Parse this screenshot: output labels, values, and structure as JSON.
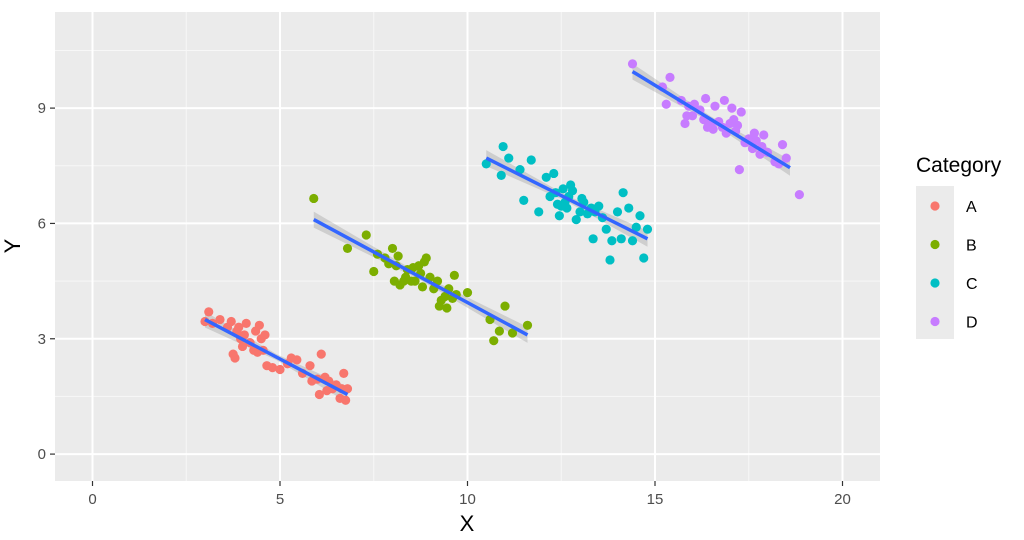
{
  "chart_data": {
    "type": "scatter",
    "xlabel": "X",
    "ylabel": "Y",
    "xlim": [
      -1,
      21
    ],
    "ylim": [
      -0.7,
      11.5
    ],
    "x_ticks": [
      0,
      5,
      10,
      15,
      20
    ],
    "x_tick_labels": [
      "0",
      "5",
      "10",
      "15",
      "20"
    ],
    "y_ticks": [
      0,
      3,
      6,
      9
    ],
    "y_tick_labels": [
      "0",
      "3",
      "6",
      "9"
    ],
    "grid": true,
    "legend": {
      "title": "Category",
      "placement": "right"
    },
    "trend_color": "#3366ff",
    "series": [
      {
        "name": "A",
        "color": "#f8766d",
        "fit": {
          "x0": 3.0,
          "y0": 3.5,
          "x1": 6.8,
          "y1": 1.55
        },
        "points": [
          [
            3.0,
            3.45
          ],
          [
            3.1,
            3.7
          ],
          [
            3.2,
            3.4
          ],
          [
            3.4,
            3.5
          ],
          [
            3.6,
            3.3
          ],
          [
            3.7,
            3.45
          ],
          [
            3.75,
            2.6
          ],
          [
            3.8,
            2.5
          ],
          [
            3.85,
            3.2
          ],
          [
            3.9,
            3.3
          ],
          [
            3.95,
            3.0
          ],
          [
            4.0,
            2.8
          ],
          [
            4.05,
            3.1
          ],
          [
            4.1,
            3.4
          ],
          [
            4.2,
            2.9
          ],
          [
            4.3,
            2.7
          ],
          [
            4.35,
            3.2
          ],
          [
            4.4,
            2.65
          ],
          [
            4.45,
            3.35
          ],
          [
            4.5,
            3.0
          ],
          [
            4.55,
            2.7
          ],
          [
            4.6,
            3.1
          ],
          [
            4.65,
            2.3
          ],
          [
            4.8,
            2.25
          ],
          [
            5.0,
            2.2
          ],
          [
            5.2,
            2.35
          ],
          [
            5.3,
            2.5
          ],
          [
            5.45,
            2.45
          ],
          [
            5.6,
            2.1
          ],
          [
            5.8,
            2.3
          ],
          [
            5.85,
            1.9
          ],
          [
            6.0,
            1.95
          ],
          [
            6.05,
            1.55
          ],
          [
            6.1,
            2.6
          ],
          [
            6.2,
            2.0
          ],
          [
            6.25,
            1.65
          ],
          [
            6.3,
            1.9
          ],
          [
            6.4,
            1.7
          ],
          [
            6.5,
            1.8
          ],
          [
            6.6,
            1.45
          ],
          [
            6.65,
            1.7
          ],
          [
            6.7,
            2.1
          ],
          [
            6.8,
            1.7
          ],
          [
            6.75,
            1.4
          ]
        ]
      },
      {
        "name": "B",
        "color": "#7cae00",
        "fit": {
          "x0": 5.9,
          "y0": 6.1,
          "x1": 11.6,
          "y1": 3.1
        },
        "points": [
          [
            5.9,
            6.65
          ],
          [
            6.8,
            5.35
          ],
          [
            7.3,
            5.7
          ],
          [
            7.5,
            4.75
          ],
          [
            7.6,
            5.2
          ],
          [
            7.8,
            5.1
          ],
          [
            7.9,
            4.95
          ],
          [
            8.0,
            5.35
          ],
          [
            8.05,
            4.5
          ],
          [
            8.1,
            4.9
          ],
          [
            8.15,
            5.15
          ],
          [
            8.2,
            4.4
          ],
          [
            8.3,
            4.5
          ],
          [
            8.35,
            4.6
          ],
          [
            8.4,
            4.8
          ],
          [
            8.5,
            4.5
          ],
          [
            8.55,
            4.85
          ],
          [
            8.6,
            4.5
          ],
          [
            8.7,
            4.9
          ],
          [
            8.75,
            4.7
          ],
          [
            8.8,
            4.35
          ],
          [
            8.85,
            5.0
          ],
          [
            8.9,
            5.1
          ],
          [
            9.0,
            4.6
          ],
          [
            9.1,
            4.3
          ],
          [
            9.2,
            4.5
          ],
          [
            9.25,
            3.85
          ],
          [
            9.3,
            4.0
          ],
          [
            9.4,
            4.1
          ],
          [
            9.45,
            3.8
          ],
          [
            9.5,
            4.3
          ],
          [
            9.6,
            4.05
          ],
          [
            9.65,
            4.65
          ],
          [
            9.7,
            4.15
          ],
          [
            10.0,
            4.2
          ],
          [
            10.7,
            2.95
          ],
          [
            10.85,
            3.2
          ],
          [
            11.0,
            3.85
          ],
          [
            11.2,
            3.15
          ],
          [
            11.6,
            3.35
          ],
          [
            10.6,
            3.5
          ]
        ]
      },
      {
        "name": "C",
        "color": "#00bfc4",
        "fit": {
          "x0": 10.5,
          "y0": 7.7,
          "x1": 14.8,
          "y1": 5.6
        },
        "points": [
          [
            10.5,
            7.55
          ],
          [
            10.9,
            7.25
          ],
          [
            10.95,
            8.0
          ],
          [
            11.1,
            7.7
          ],
          [
            11.4,
            7.4
          ],
          [
            11.5,
            6.6
          ],
          [
            11.7,
            7.65
          ],
          [
            11.9,
            6.3
          ],
          [
            12.1,
            7.2
          ],
          [
            12.2,
            6.7
          ],
          [
            12.3,
            7.3
          ],
          [
            12.35,
            6.8
          ],
          [
            12.4,
            6.5
          ],
          [
            12.45,
            6.2
          ],
          [
            12.5,
            6.45
          ],
          [
            12.55,
            6.9
          ],
          [
            12.6,
            6.55
          ],
          [
            12.65,
            6.4
          ],
          [
            12.7,
            6.7
          ],
          [
            12.75,
            7.0
          ],
          [
            12.8,
            6.85
          ],
          [
            12.9,
            6.1
          ],
          [
            13.0,
            6.3
          ],
          [
            13.05,
            6.65
          ],
          [
            13.1,
            6.55
          ],
          [
            13.2,
            6.25
          ],
          [
            13.3,
            6.4
          ],
          [
            13.35,
            5.6
          ],
          [
            13.4,
            6.3
          ],
          [
            13.5,
            6.45
          ],
          [
            13.6,
            6.15
          ],
          [
            13.7,
            5.85
          ],
          [
            13.8,
            5.05
          ],
          [
            13.85,
            5.55
          ],
          [
            14.0,
            6.3
          ],
          [
            14.1,
            5.6
          ],
          [
            14.15,
            6.8
          ],
          [
            14.3,
            6.4
          ],
          [
            14.4,
            5.55
          ],
          [
            14.5,
            5.9
          ],
          [
            14.6,
            6.2
          ],
          [
            14.7,
            5.1
          ],
          [
            14.8,
            5.85
          ]
        ]
      },
      {
        "name": "D",
        "color": "#c77cff",
        "fit": {
          "x0": 14.4,
          "y0": 9.95,
          "x1": 18.6,
          "y1": 7.45
        },
        "points": [
          [
            14.4,
            10.15
          ],
          [
            15.2,
            9.55
          ],
          [
            15.3,
            9.1
          ],
          [
            15.4,
            9.8
          ],
          [
            15.7,
            9.2
          ],
          [
            15.8,
            8.6
          ],
          [
            15.85,
            8.8
          ],
          [
            15.9,
            9.05
          ],
          [
            16.0,
            8.8
          ],
          [
            16.05,
            9.1
          ],
          [
            16.2,
            8.95
          ],
          [
            16.3,
            8.7
          ],
          [
            16.35,
            9.25
          ],
          [
            16.4,
            8.5
          ],
          [
            16.5,
            8.6
          ],
          [
            16.55,
            8.45
          ],
          [
            16.6,
            9.05
          ],
          [
            16.7,
            8.65
          ],
          [
            16.8,
            8.5
          ],
          [
            16.85,
            9.2
          ],
          [
            16.9,
            8.35
          ],
          [
            17.0,
            8.6
          ],
          [
            17.05,
            9.0
          ],
          [
            17.1,
            8.7
          ],
          [
            17.15,
            8.4
          ],
          [
            17.2,
            8.55
          ],
          [
            17.25,
            7.4
          ],
          [
            17.3,
            8.9
          ],
          [
            17.4,
            8.1
          ],
          [
            17.5,
            8.2
          ],
          [
            17.6,
            7.95
          ],
          [
            17.65,
            8.35
          ],
          [
            17.7,
            8.15
          ],
          [
            17.8,
            7.8
          ],
          [
            17.85,
            8.0
          ],
          [
            17.9,
            8.3
          ],
          [
            18.0,
            7.85
          ],
          [
            18.2,
            7.6
          ],
          [
            18.3,
            7.55
          ],
          [
            18.4,
            8.05
          ],
          [
            18.5,
            7.7
          ],
          [
            18.85,
            6.75
          ]
        ]
      }
    ]
  }
}
